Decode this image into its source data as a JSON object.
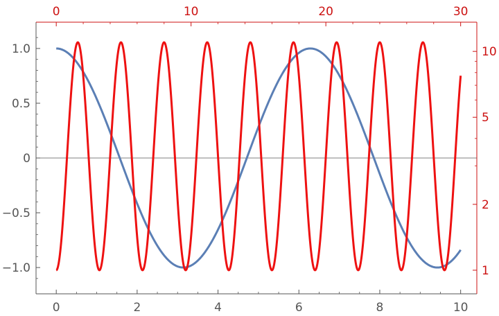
{
  "chart_data": {
    "type": "line",
    "title": "",
    "xlabel": "",
    "ylabel": "",
    "grid": false,
    "legend": "none",
    "colors": {
      "blue_series": "#5b7fb5",
      "red_series": "#ee1111",
      "primary_axis": "#555555",
      "secondary_axis": "#cc1111",
      "zero_line": "#555555"
    },
    "x_bottom": {
      "range": [
        -0.5,
        10.4
      ],
      "ticks": [
        0,
        2,
        4,
        6,
        8,
        10
      ],
      "tick_labels": [
        "0",
        "2",
        "4",
        "6",
        "8",
        "10"
      ]
    },
    "x_top": {
      "range": [
        -1.5,
        31.2
      ],
      "ticks": [
        0,
        10,
        20,
        30
      ],
      "tick_labels": [
        "0",
        "10",
        "20",
        "30"
      ]
    },
    "y_left": {
      "range": [
        -1.24,
        1.24
      ],
      "ticks": [
        -1.0,
        -0.5,
        0,
        0.5,
        1.0
      ],
      "tick_labels": [
        "−1.0",
        "−0.5",
        "0",
        "0.5",
        "1.0"
      ]
    },
    "y_right": {
      "scale": "log",
      "range": [
        0.78,
        13.6
      ],
      "ticks": [
        1,
        2,
        5,
        10
      ],
      "tick_labels": [
        "1",
        "2",
        "5",
        "10"
      ]
    },
    "series": [
      {
        "axes": "bottom-left",
        "function": "cos(x)",
        "x_range": [
          0,
          10
        ],
        "samples": [
          [
            0,
            1.0
          ],
          [
            1,
            0.54
          ],
          [
            2,
            -0.416
          ],
          [
            3,
            -0.99
          ],
          [
            3.14,
            -1.0
          ],
          [
            4,
            -0.654
          ],
          [
            5,
            0.284
          ],
          [
            6,
            0.96
          ],
          [
            6.28,
            1.0
          ],
          [
            7,
            0.754
          ],
          [
            8,
            -0.146
          ],
          [
            9,
            -0.911
          ],
          [
            9.42,
            -1.0
          ],
          [
            10,
            -0.839
          ]
        ]
      },
      {
        "axes": "top-right",
        "x_range": [
          0,
          30
        ],
        "min": 1,
        "max": 11,
        "maxima_x": [
          1.6,
          4.8,
          8.0,
          11.2,
          14.4,
          17.6,
          20.8,
          24.0,
          27.2,
          30.4
        ],
        "minima_x": [
          0,
          3.2,
          6.4,
          9.6,
          12.8,
          16.0,
          19.2,
          22.4,
          25.6,
          28.8
        ]
      }
    ]
  }
}
